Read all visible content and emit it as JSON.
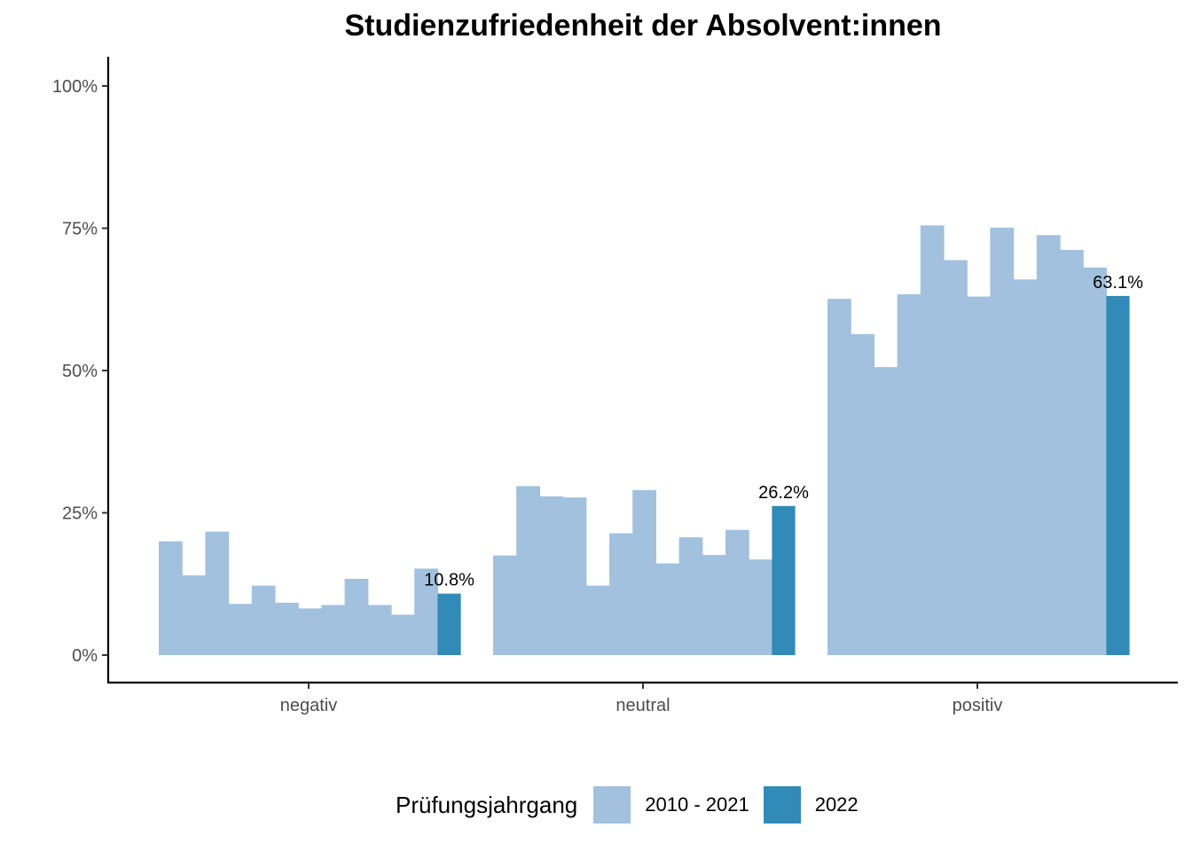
{
  "chart_data": {
    "type": "bar",
    "title": "Studienzufriedenheit der Absolvent:innen",
    "xlabel": "",
    "ylabel": "",
    "ylim": [
      0,
      1.05
    ],
    "y_ticks": [
      {
        "value": 0,
        "label": "0%"
      },
      {
        "value": 0.25,
        "label": "25%"
      },
      {
        "value": 0.5,
        "label": "50%"
      },
      {
        "value": 0.75,
        "label": "75%"
      },
      {
        "value": 1.0,
        "label": "100%"
      }
    ],
    "categories": [
      "negativ",
      "neutral",
      "positiv"
    ],
    "legend": {
      "title": "Prüfungsjahrgang",
      "position": "bottom",
      "entries": [
        {
          "label": "2010 - 2021",
          "color": "#a1c1de"
        },
        {
          "label": "2022",
          "color": "#318ab7"
        }
      ]
    },
    "groups": [
      {
        "category": "negativ",
        "historic_values": [
          0.2,
          0.14,
          0.217,
          0.09,
          0.122,
          0.092,
          0.082,
          0.088,
          0.134,
          0.088,
          0.071,
          0.152
        ],
        "current_value": 0.108,
        "current_label": "10.8%"
      },
      {
        "category": "neutral",
        "historic_values": [
          0.175,
          0.297,
          0.279,
          0.277,
          0.122,
          0.214,
          0.29,
          0.161,
          0.207,
          0.176,
          0.22,
          0.168
        ],
        "current_value": 0.262,
        "current_label": "26.2%"
      },
      {
        "category": "positiv",
        "historic_values": [
          0.626,
          0.564,
          0.506,
          0.634,
          0.755,
          0.694,
          0.63,
          0.751,
          0.66,
          0.738,
          0.712,
          0.681
        ],
        "current_value": 0.631,
        "current_label": "63.1%"
      }
    ],
    "grid": false
  }
}
